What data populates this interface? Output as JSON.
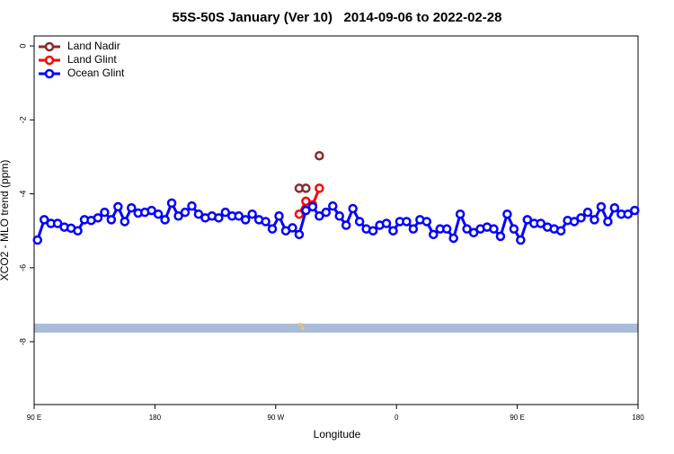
{
  "chart_data": {
    "type": "line",
    "title": "55S-50S January (Ver 10)   2014-09-06 to 2022-02-28",
    "x_label": "Longitude",
    "y_label": "XCO2 - MLO trend (ppm)",
    "xlim": [
      90,
      540
    ],
    "ylim": [
      -9.7,
      0.27
    ],
    "xticks": [
      {
        "value": 90,
        "label": "90 E"
      },
      180,
      {
        "value": 270,
        "label": "90 W"
      },
      {
        "value": 360,
        "label": "0"
      },
      {
        "value": 450,
        "label": "90 E"
      },
      {
        "value": 540,
        "label": "180"
      }
    ],
    "yticks": [
      0,
      -2,
      -4,
      -6,
      -8
    ],
    "legend": "top-left",
    "series": [
      {
        "name": "Land Nadir",
        "color": "#8b2a2a",
        "x": [
          287.5,
          292.5,
          297.5,
          302.5
        ],
        "values": [
          -3.85,
          -3.85,
          null,
          -2.97
        ]
      },
      {
        "name": "Land Glint",
        "color": "#ff0000",
        "x": [
          287.5,
          292.5,
          297.5,
          302.5
        ],
        "values": [
          -4.55,
          -4.2,
          -4.3,
          -3.85
        ]
      },
      {
        "name": "Ocean Glint",
        "color": "#0000ff",
        "x": [
          92.5,
          97.5,
          102.5,
          107.5,
          112.5,
          117.5,
          122.5,
          127.5,
          132.5,
          137.5,
          142.5,
          147.5,
          152.5,
          157.5,
          162.5,
          167.5,
          172.5,
          177.5,
          182.5,
          187.5,
          192.5,
          197.5,
          202.5,
          207.5,
          212.5,
          217.5,
          222.5,
          227.5,
          232.5,
          237.5,
          242.5,
          247.5,
          252.5,
          257.5,
          262.5,
          267.5,
          272.5,
          277.5,
          282.5,
          287.5,
          292.5,
          297.5,
          302.5,
          307.5,
          312.5,
          317.5,
          322.5,
          327.5,
          332.5,
          337.5,
          342.5,
          347.5,
          352.5,
          357.5,
          362.5,
          367.5,
          372.5,
          377.5,
          382.5,
          387.5,
          392.5,
          397.5,
          402.5,
          407.5,
          412.5,
          417.5,
          422.5,
          427.5,
          432.5,
          437.5,
          442.5,
          447.5,
          452.5,
          457.5,
          462.5,
          467.5,
          472.5,
          477.5,
          482.5,
          487.5,
          492.5,
          497.5,
          502.5,
          507.5,
          512.5,
          517.5,
          522.5,
          527.5,
          532.5,
          537.5
        ],
        "values": [
          -5.25,
          -4.7,
          -4.8,
          -4.8,
          -4.9,
          -4.93,
          -5.0,
          -4.7,
          -4.72,
          -4.65,
          -4.5,
          -4.7,
          -4.35,
          -4.75,
          -4.38,
          -4.52,
          -4.5,
          -4.45,
          -4.55,
          -4.7,
          -4.25,
          -4.6,
          -4.5,
          -4.33,
          -4.55,
          -4.65,
          -4.6,
          -4.65,
          -4.5,
          -4.6,
          -4.6,
          -4.7,
          -4.55,
          -4.7,
          -4.75,
          -4.95,
          -4.6,
          -5.0,
          -4.92,
          -5.1,
          -4.45,
          -4.35,
          -4.6,
          -4.5,
          -4.33,
          -4.6,
          -4.85,
          -4.4,
          -4.75,
          -4.95,
          -5.0,
          -4.85,
          -4.8,
          -5.0,
          -4.75,
          -4.75,
          -4.95,
          -4.7,
          -4.75,
          -5.1,
          -4.95,
          -4.95,
          -5.2,
          -4.55,
          -4.95,
          -5.05,
          -4.95,
          -4.9,
          -4.95,
          -5.15,
          -4.55,
          -4.95,
          -5.25,
          -4.7,
          -4.8,
          -4.8,
          -4.9,
          -4.95,
          -5.0,
          -4.72,
          -4.75,
          -4.65,
          -4.5,
          -4.7,
          -4.35,
          -4.75,
          -4.38,
          -4.55,
          -4.55,
          -4.45
        ]
      }
    ]
  }
}
